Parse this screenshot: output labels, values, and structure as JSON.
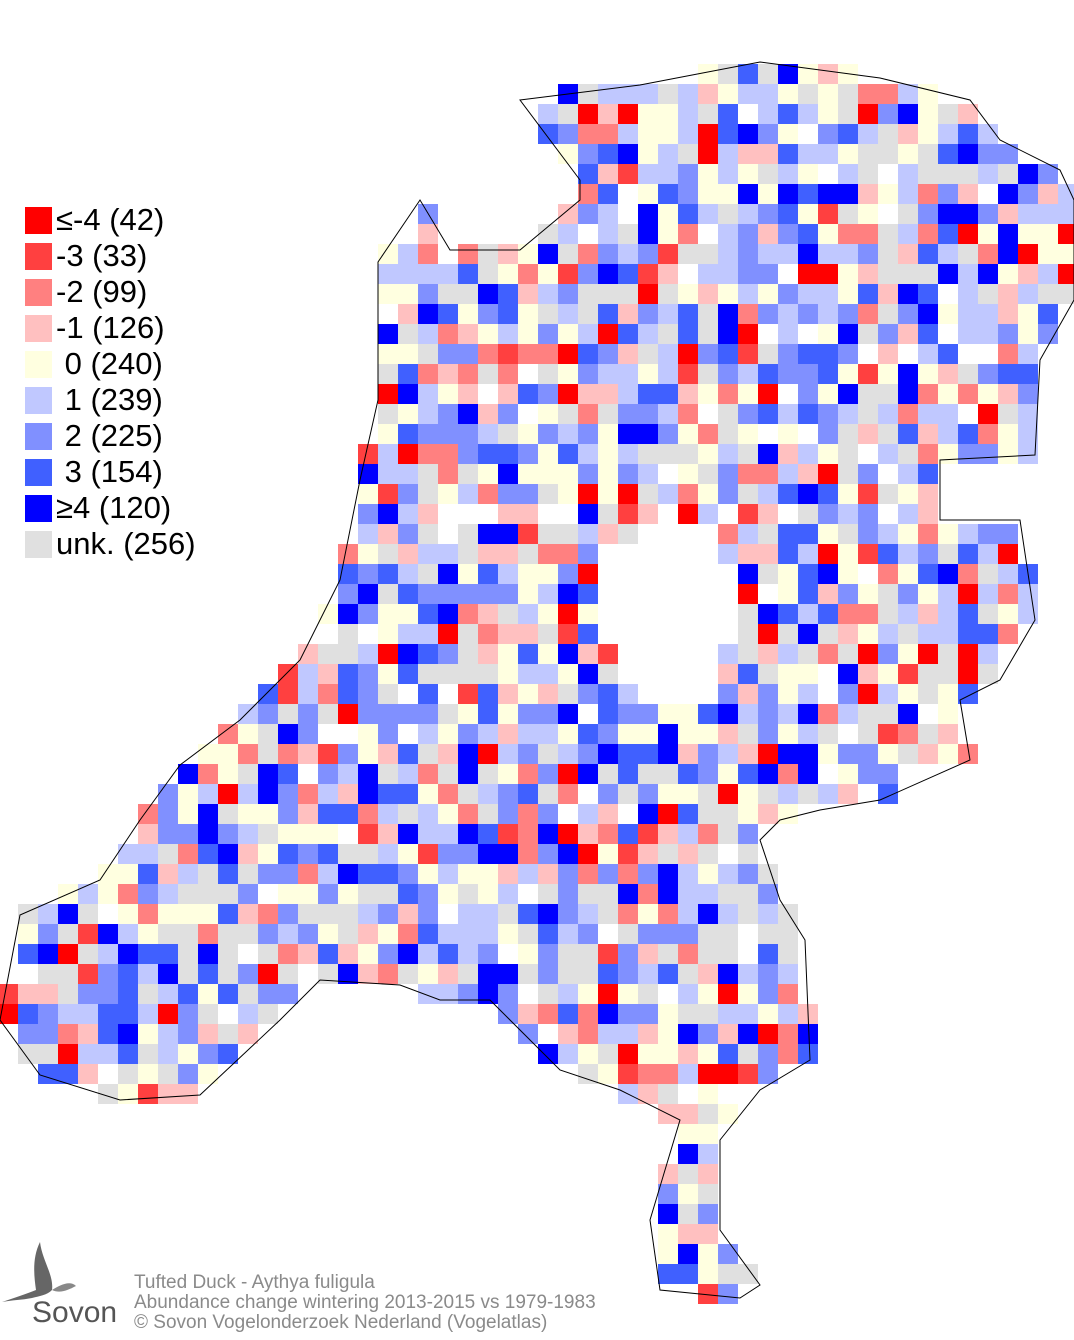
{
  "legend": {
    "items": [
      {
        "label": "≤-4 (42)",
        "class": "≤-4",
        "count": 42,
        "color": "#ff0000"
      },
      {
        "label": "-3 (33)",
        "class": "-3",
        "count": 33,
        "color": "#ff4040"
      },
      {
        "label": "-2 (99)",
        "class": "-2",
        "count": 99,
        "color": "#ff8080"
      },
      {
        "label": "-1 (126)",
        "class": "-1",
        "count": 126,
        "color": "#ffc0c0"
      },
      {
        "label": " 0 (240)",
        "class": "0",
        "count": 240,
        "color": "#ffffe0"
      },
      {
        "label": " 1 (239)",
        "class": "1",
        "count": 239,
        "color": "#c0c8ff"
      },
      {
        "label": " 2 (225)",
        "class": "2",
        "count": 225,
        "color": "#8090ff"
      },
      {
        "label": " 3 (154)",
        "class": "3",
        "count": 154,
        "color": "#4060ff"
      },
      {
        "label": "≥4 (120)",
        "class": "≥4",
        "count": 120,
        "color": "#0000ff"
      },
      {
        "label": "unk. (256)",
        "class": "unk.",
        "count": 256,
        "color": "#e0e0e0"
      }
    ]
  },
  "footer": {
    "species": "Tufted Duck - Aythya fuligula",
    "subtitle": "Abundance change wintering  2013-2015 vs 1979-1983",
    "copyright": "© Sovon Vogelonderzoek Nederland (Vogelatlas)"
  },
  "logo": {
    "text": "Sovon"
  }
}
